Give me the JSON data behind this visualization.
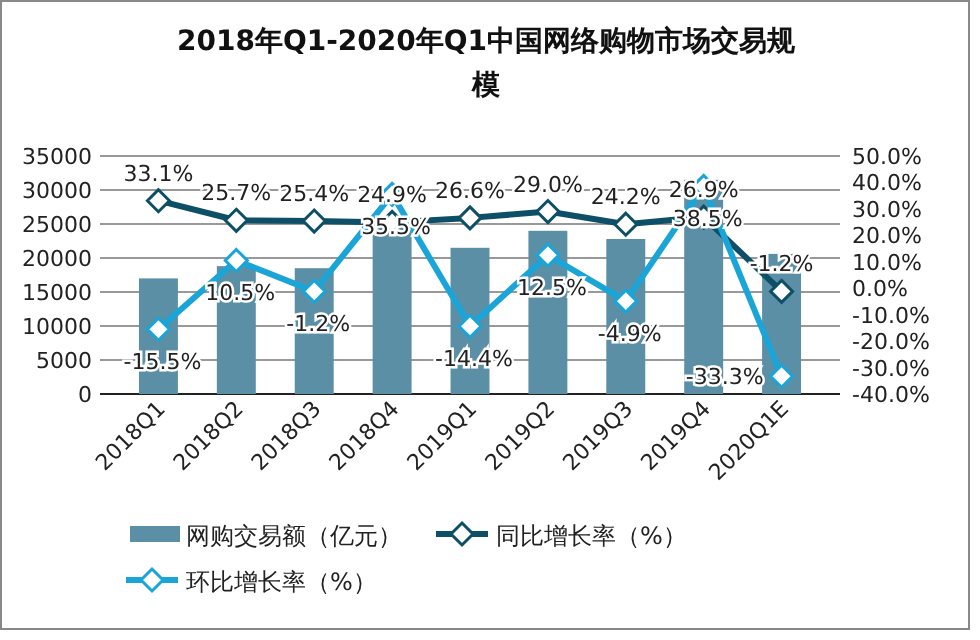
{
  "chart_data": {
    "type": "bar",
    "title": "2018年Q1-2020年Q1中国网络购物市场交易规模",
    "categories": [
      "2018Q1",
      "2018Q2",
      "2018Q3",
      "2018Q4",
      "2019Q1",
      "2019Q2",
      "2019Q3",
      "2019Q4",
      "2020Q1E"
    ],
    "series": [
      {
        "name": "网购交易额（亿元）",
        "color": "#5b8fa6",
        "values": [
          17000,
          18800,
          18500,
          25000,
          21500,
          24000,
          22800,
          31500,
          20600
        ]
      },
      {
        "name": "同比增长率（%）",
        "type": "line",
        "axis": "y2",
        "color": "#0d4f66",
        "values": [
          33.1,
          25.7,
          25.4,
          24.9,
          26.6,
          29.0,
          24.2,
          26.9,
          -1.2
        ],
        "value_labels": [
          "33.1%",
          "25.7%",
          "25.4%",
          "24.9%",
          "26.6%",
          "29.0%",
          "24.2%",
          "26.9%",
          "-1.2%"
        ]
      },
      {
        "name": "环比增长率（%）",
        "type": "line",
        "axis": "y2",
        "color": "#19a5d8",
        "values": [
          -15.5,
          10.5,
          -1.2,
          35.5,
          -14.4,
          12.5,
          -4.9,
          38.5,
          -33.3
        ],
        "value_labels": [
          "-15.5%",
          "10.5%",
          "-1.2%",
          "35.5%",
          "-14.4%",
          "12.5%",
          "-4.9%",
          "38.5%",
          "-33.3%"
        ]
      }
    ],
    "ylim": [
      0,
      35000
    ],
    "yticks": [
      0,
      5000,
      10000,
      15000,
      20000,
      25000,
      30000,
      35000
    ],
    "y2lim": [
      -40,
      50
    ],
    "y2ticks": [
      {
        "value": -40,
        "label": "-40.0%"
      },
      {
        "value": -30,
        "label": "-30.0%"
      },
      {
        "value": -20,
        "label": "-20.0%"
      },
      {
        "value": -10,
        "label": "-10.0%"
      },
      {
        "value": 0,
        "label": "0.0%"
      },
      {
        "value": 10,
        "label": "10.0%"
      },
      {
        "value": 20,
        "label": "20.0%"
      },
      {
        "value": 30,
        "label": "30.0%"
      },
      {
        "value": 40,
        "label": "40.0%"
      },
      {
        "value": 50,
        "label": "50.0%"
      }
    ],
    "grid": "y",
    "legend": "bottom",
    "marker": "diamond"
  }
}
